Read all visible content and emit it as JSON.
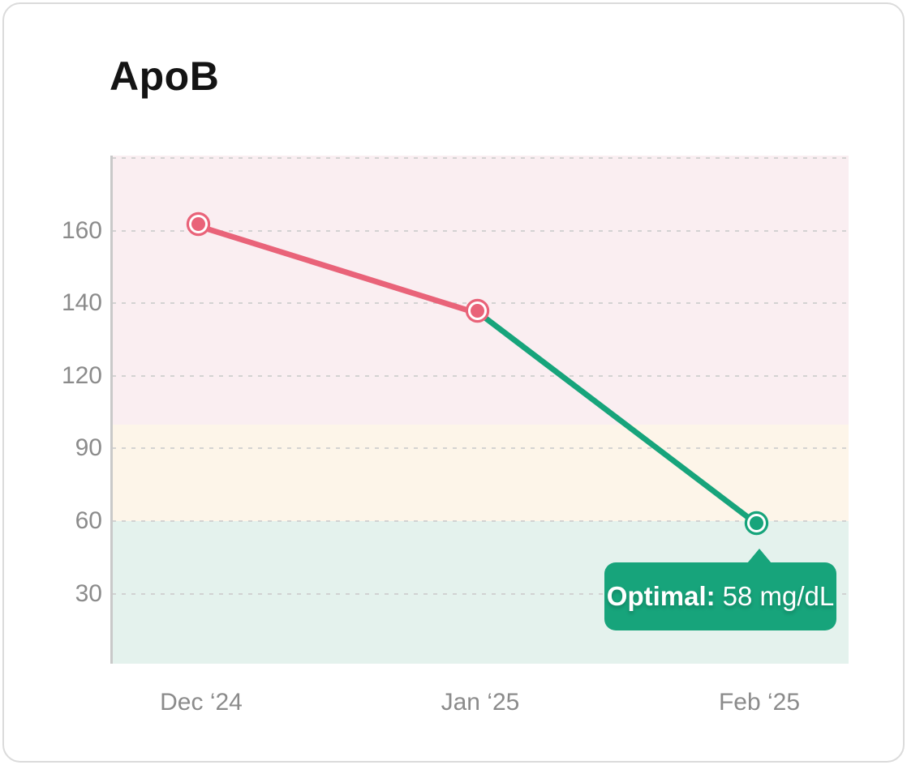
{
  "title": "ApoB",
  "colors": {
    "abnormal_series": "#E96379",
    "optimal_series": "#17A47B",
    "zone_high": "#FAEEF1",
    "zone_borderline": "#FDF5E9",
    "zone_optimal": "#E4F2ED",
    "gridline": "#CFCFCF",
    "axis_line": "#C9C9C9",
    "axis_label": "#8B8B8B",
    "title_text": "#141414",
    "tooltip_bg": "#17A47B"
  },
  "chart_data": {
    "type": "line",
    "title": "ApoB",
    "unit": "mg/dL",
    "categories": [
      "Dec ‘24",
      "Jan ‘25",
      "Feb ‘25"
    ],
    "series": [
      {
        "name": "ApoB",
        "values": [
          161,
          137,
          58
        ]
      }
    ],
    "values": [
      161,
      137,
      58
    ],
    "point_colors": [
      "#E96379",
      "#E96379",
      "#17A47B"
    ],
    "segment_colors": [
      "#E96379",
      "#17A47B"
    ],
    "y_ticks": [
      180,
      160,
      140,
      120,
      90,
      60,
      30
    ],
    "y_tick_labels": [
      "",
      "160",
      "140",
      "120",
      "90",
      "60",
      "30"
    ],
    "ylim_top": 180,
    "grid": "dashed",
    "legend": "none",
    "zones": [
      {
        "name": "high",
        "from_value": 100,
        "to_value": null,
        "color": "#FAEEF1"
      },
      {
        "name": "borderline",
        "from_value": 60,
        "to_value": 100,
        "color": "#FDF5E9"
      },
      {
        "name": "optimal",
        "from_value": null,
        "to_value": 60,
        "color": "#E4F2ED"
      }
    ],
    "tooltip": {
      "label": "Optimal:",
      "value": "58 mg/dL",
      "point_index": 2
    }
  }
}
